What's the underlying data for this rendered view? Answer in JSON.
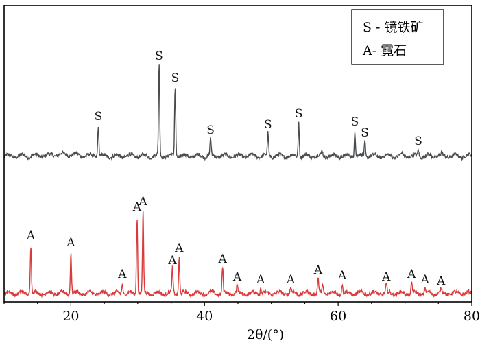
{
  "chart_data": {
    "type": "line",
    "xlabel": "2θ/(°)",
    "ylabel": "",
    "xlim": [
      10,
      80
    ],
    "xticks": [
      20,
      40,
      60,
      80
    ],
    "yticks_visible": false,
    "grid": false,
    "legend": {
      "placement": "top-right",
      "entries": [
        "S - 镜铁矿",
        "A- 霓石"
      ]
    },
    "series": [
      {
        "color": "#4a4d50",
        "baseline": 1.0,
        "peaks": [
          {
            "x": 24.1,
            "h": 0.23,
            "label": "S"
          },
          {
            "x": 33.2,
            "h": 0.67,
            "label": "S"
          },
          {
            "x": 35.6,
            "h": 0.51,
            "label": "S"
          },
          {
            "x": 40.9,
            "h": 0.13,
            "label": "S"
          },
          {
            "x": 49.5,
            "h": 0.17,
            "label": "S"
          },
          {
            "x": 54.1,
            "h": 0.25,
            "label": "S"
          },
          {
            "x": 57.6,
            "h": 0.04,
            "label": ""
          },
          {
            "x": 62.5,
            "h": 0.19,
            "label": "S"
          },
          {
            "x": 64.0,
            "h": 0.11,
            "label": "S"
          },
          {
            "x": 69.6,
            "h": 0.02,
            "label": ""
          },
          {
            "x": 72.0,
            "h": 0.05,
            "label": "S"
          },
          {
            "x": 75.5,
            "h": 0.02,
            "label": ""
          }
        ]
      },
      {
        "color": "#d93a3a",
        "baseline": 0.0,
        "peaks": [
          {
            "x": 14.0,
            "h": 0.36,
            "label": "A"
          },
          {
            "x": 20.0,
            "h": 0.31,
            "label": "A"
          },
          {
            "x": 27.7,
            "h": 0.08,
            "label": "A"
          },
          {
            "x": 29.9,
            "h": 0.57,
            "label": "A"
          },
          {
            "x": 30.8,
            "h": 0.61,
            "label": "A"
          },
          {
            "x": 35.2,
            "h": 0.18,
            "label": "A"
          },
          {
            "x": 36.2,
            "h": 0.27,
            "label": "A"
          },
          {
            "x": 42.7,
            "h": 0.19,
            "label": "A"
          },
          {
            "x": 44.9,
            "h": 0.06,
            "label": "A"
          },
          {
            "x": 48.4,
            "h": 0.04,
            "label": "A"
          },
          {
            "x": 52.9,
            "h": 0.04,
            "label": "A"
          },
          {
            "x": 57.0,
            "h": 0.11,
            "label": "A"
          },
          {
            "x": 57.7,
            "h": 0.07,
            "label": ""
          },
          {
            "x": 60.6,
            "h": 0.07,
            "label": "A"
          },
          {
            "x": 67.2,
            "h": 0.06,
            "label": "A"
          },
          {
            "x": 71.0,
            "h": 0.08,
            "label": "A"
          },
          {
            "x": 73.0,
            "h": 0.04,
            "label": "A"
          },
          {
            "x": 75.4,
            "h": 0.03,
            "label": "A"
          }
        ]
      }
    ]
  }
}
